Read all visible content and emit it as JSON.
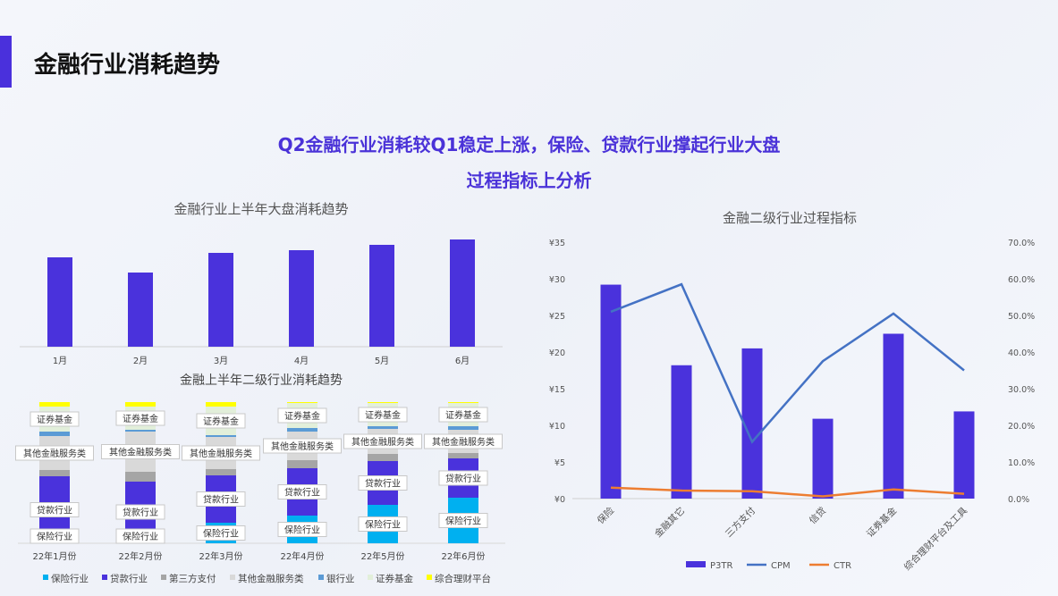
{
  "header": {
    "title": "金融行业消耗趋势",
    "subtitle_line1": "Q2金融行业消耗较Q1稳定上涨，保险、贷款行业撑起行业大盘",
    "subtitle_line2": "过程指标上分析"
  },
  "colors": {
    "accent": "#4a30dc",
    "bar": "#4a32dc",
    "cpm": "#4472c4",
    "ctr": "#ed7d31"
  },
  "chart_data": [
    {
      "type": "bar",
      "title": "金融行业上半年大盘消耗趋势",
      "categories": [
        "1月",
        "2月",
        "3月",
        "4月",
        "5月",
        "6月"
      ],
      "values": [
        100,
        83,
        105,
        108,
        114,
        120
      ],
      "grid": false
    },
    {
      "type": "bar",
      "stacked": true,
      "title": "金融上半年二级行业消耗趋势",
      "categories": [
        "22年1月份",
        "22年2月份",
        "22年3月份",
        "22年4月份",
        "22年5月份",
        "22年6月份"
      ],
      "legend_position": "bottom",
      "series": [
        {
          "name": "保险行业",
          "color": "#00b0f0",
          "values": [
            0,
            1,
            23,
            31,
            43,
            51
          ]
        },
        {
          "name": "贷款行业",
          "color": "#4a32dc",
          "values": [
            75,
            68,
            53,
            53,
            49,
            44
          ]
        },
        {
          "name": "第三方支付",
          "color": "#a5a5a5",
          "values": [
            7,
            11,
            7,
            9,
            8,
            6
          ]
        },
        {
          "name": "其他金融服务类",
          "color": "#d9d9d9",
          "values": [
            38,
            45,
            36,
            32,
            28,
            26
          ]
        },
        {
          "name": "银行业",
          "color": "#5b9bd5",
          "values": [
            5,
            2,
            2,
            4,
            3,
            4
          ]
        },
        {
          "name": "证券基金",
          "color": "#e2efda",
          "values": [
            28,
            26,
            32,
            28,
            26,
            26
          ]
        },
        {
          "name": "综合理财平台",
          "color": "#ffff00",
          "values": [
            5,
            5,
            5,
            1,
            1,
            1
          ]
        }
      ],
      "data_labels": [
        "保险行业",
        "贷款行业",
        "其他金融服务类",
        "证券基金"
      ]
    },
    {
      "type": "bar+line",
      "title": "金融二级行业过程指标",
      "categories": [
        "保险",
        "金融其它",
        "三方支付",
        "信贷",
        "证券基金",
        "综合理财平台及工具"
      ],
      "y_left": {
        "range": [
          0,
          35
        ],
        "ticks": [
          "¥0",
          "¥5",
          "¥10",
          "¥15",
          "¥20",
          "¥25",
          "¥30",
          "¥35"
        ]
      },
      "y_right": {
        "range": [
          0,
          70
        ],
        "ticks": [
          "0.0%",
          "10.0%",
          "20.0%",
          "30.0%",
          "40.0%",
          "50.0%",
          "60.0%",
          "70.0%"
        ]
      },
      "legend_position": "bottom",
      "series": [
        {
          "name": "P3TR",
          "type": "bar",
          "axis": "left",
          "values": [
            29.2,
            18.2,
            20.5,
            10.9,
            22.5,
            11.9
          ]
        },
        {
          "name": "CPM",
          "type": "line",
          "axis": "right",
          "values": [
            51.0,
            58.5,
            15.5,
            37.5,
            50.5,
            35.0
          ]
        },
        {
          "name": "CTR",
          "type": "line",
          "axis": "right",
          "values": [
            3.0,
            2.2,
            2.0,
            0.6,
            2.5,
            1.3
          ]
        }
      ]
    }
  ]
}
